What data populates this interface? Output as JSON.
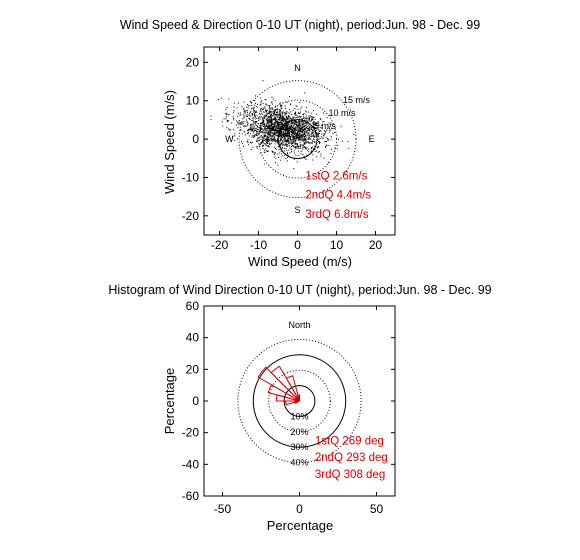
{
  "chart_data": [
    {
      "type": "scatter",
      "title": "Wind Speed & Direction 0-10 UT (night),  period:Jun. 98 - Dec. 99",
      "xlabel": "Wind Speed (m/s)",
      "ylabel": "Wind Speed (m/s)",
      "xlim": [
        -24,
        25
      ],
      "ylim": [
        -25,
        24
      ],
      "xticks": [
        "-20",
        "-10",
        "0",
        "10",
        "20"
      ],
      "yticks": [
        "20",
        "10",
        "0",
        "-10",
        "-20"
      ],
      "compass": {
        "n": "N",
        "s": "S",
        "e": "E",
        "w": "W"
      },
      "rings": [
        {
          "r": 5,
          "style": "solid",
          "label": "5 m/s"
        },
        {
          "r": 10,
          "style": "dotted",
          "label": "10 m/s"
        },
        {
          "r": 15,
          "style": "dotted",
          "label": "15 m/s"
        }
      ],
      "quartiles": [
        "1stQ 2.6m/s",
        "2ndQ 4.4m/s",
        "3rdQ 6.8m/s"
      ],
      "cluster": {
        "center": [
          -3.5,
          2.5
        ],
        "spread": [
          5,
          2.8
        ],
        "count": 2200
      }
    },
    {
      "type": "rose",
      "title": "Histogram of Wind Direction 0-10 UT (night),  period:Jun. 98 - Dec. 99",
      "xlabel": "Percentage",
      "ylabel": "Percentage",
      "xlim": [
        -62,
        62
      ],
      "ylim": [
        -60,
        60
      ],
      "xticks": [
        "-50",
        "0",
        "50"
      ],
      "yticks": [
        "60",
        "40",
        "20",
        "0",
        "-20",
        "-40",
        "-60"
      ],
      "north_label": "North",
      "rings": [
        {
          "r": 10,
          "style": "solid",
          "label": "10%"
        },
        {
          "r": 20,
          "style": "dotted",
          "label": "20%"
        },
        {
          "r": 30,
          "style": "solid",
          "label": "30%"
        },
        {
          "r": 40,
          "style": "dotted",
          "label": "40%"
        }
      ],
      "wedges": [
        {
          "from": 240,
          "to": 255,
          "pct": 3
        },
        {
          "from": 255,
          "to": 270,
          "pct": 9
        },
        {
          "from": 270,
          "to": 285,
          "pct": 15
        },
        {
          "from": 285,
          "to": 300,
          "pct": 21
        },
        {
          "from": 300,
          "to": 315,
          "pct": 31
        },
        {
          "from": 315,
          "to": 330,
          "pct": 26
        },
        {
          "from": 330,
          "to": 345,
          "pct": 17
        },
        {
          "from": 345,
          "to": 360,
          "pct": 4
        }
      ],
      "quartiles": [
        "1stQ 269 deg",
        "2ndQ 293 deg",
        "3rdQ 308 deg"
      ]
    }
  ]
}
